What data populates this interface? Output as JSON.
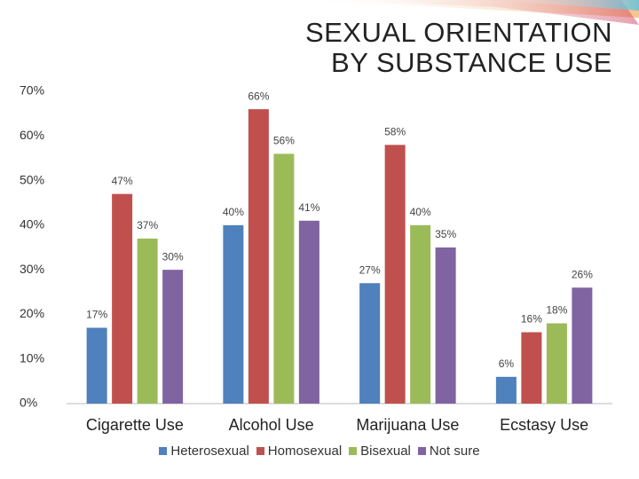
{
  "chart_data": {
    "type": "bar",
    "title": "SEXUAL ORIENTATION BY SUBSTANCE USE",
    "categories": [
      "Cigarette Use",
      "Alcohol Use",
      "Marijuana Use",
      "Ecstasy Use"
    ],
    "series": [
      {
        "name": "Heterosexual",
        "color": "#4f81bd",
        "values": [
          17,
          40,
          27,
          6
        ],
        "value_labels": [
          "17%",
          "40%",
          "27%",
          "6%"
        ]
      },
      {
        "name": "Homosexual",
        "color": "#c0504d",
        "values": [
          47,
          66,
          58,
          16
        ],
        "value_labels": [
          "47%",
          "66%",
          "58%",
          "16%"
        ]
      },
      {
        "name": "Bisexual",
        "color": "#9bbb59",
        "values": [
          37,
          56,
          40,
          18
        ],
        "value_labels": [
          "37%",
          "56%",
          "40%",
          "18%"
        ]
      },
      {
        "name": "Not sure",
        "color": "#8064a2",
        "values": [
          30,
          41,
          35,
          26
        ],
        "value_labels": [
          "30%",
          "41%",
          "35%",
          "26%"
        ]
      }
    ],
    "ylim": [
      0,
      70
    ],
    "yticks": [
      {
        "value": 0,
        "label": "0%"
      },
      {
        "value": 10,
        "label": "10%"
      },
      {
        "value": 20,
        "label": "20%"
      },
      {
        "value": 30,
        "label": "30%"
      },
      {
        "value": 40,
        "label": "40%"
      },
      {
        "value": 50,
        "label": "50%"
      },
      {
        "value": 60,
        "label": "60%"
      },
      {
        "value": 70,
        "label": "70%"
      }
    ],
    "grid": false,
    "legend": "bottom"
  }
}
